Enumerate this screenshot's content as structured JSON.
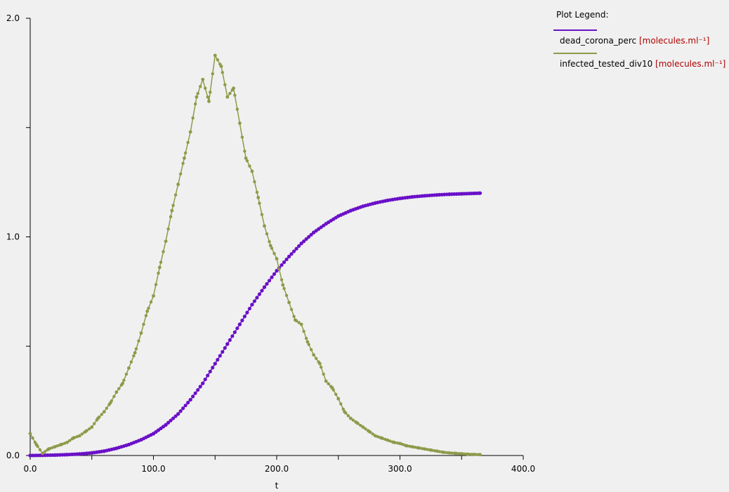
{
  "chart_data": {
    "type": "line",
    "title": "",
    "xlabel": "t",
    "ylabel": "",
    "xlim": [
      0,
      400
    ],
    "ylim": [
      0,
      2
    ],
    "x_ticks": [
      0,
      50,
      100,
      150,
      200,
      250,
      300,
      350,
      400
    ],
    "x_tick_labels": [
      "0.0",
      "",
      "100.0",
      "",
      "200.0",
      "",
      "300.0",
      "",
      "400.0"
    ],
    "y_ticks": [
      0,
      0.5,
      1.0,
      1.5,
      2.0
    ],
    "y_tick_labels": [
      "0.0",
      "",
      "1.0",
      "",
      "2.0"
    ],
    "grid": false,
    "legend_position": "right",
    "series": [
      {
        "name": "dead_corona_perc",
        "unit": "[molecules.ml⁻¹]",
        "color": "#6a10c8",
        "x": [
          0,
          10,
          20,
          30,
          40,
          50,
          60,
          70,
          80,
          90,
          100,
          110,
          120,
          130,
          140,
          150,
          160,
          170,
          180,
          190,
          200,
          210,
          220,
          230,
          240,
          250,
          260,
          270,
          280,
          290,
          300,
          310,
          320,
          330,
          340,
          350,
          360,
          365
        ],
        "y": [
          0.0,
          0.001,
          0.002,
          0.004,
          0.007,
          0.012,
          0.02,
          0.033,
          0.05,
          0.072,
          0.1,
          0.14,
          0.19,
          0.255,
          0.33,
          0.42,
          0.51,
          0.6,
          0.69,
          0.77,
          0.845,
          0.91,
          0.97,
          1.02,
          1.06,
          1.095,
          1.12,
          1.14,
          1.155,
          1.167,
          1.176,
          1.183,
          1.188,
          1.192,
          1.195,
          1.197,
          1.199,
          1.2
        ]
      },
      {
        "name": "infected_tested_div10",
        "unit": "[molecules.ml⁻¹]",
        "color": "#8f9a4a",
        "x": [
          0,
          5,
          10,
          15,
          20,
          25,
          30,
          35,
          40,
          45,
          50,
          55,
          60,
          65,
          70,
          75,
          80,
          85,
          90,
          95,
          100,
          105,
          110,
          115,
          120,
          125,
          130,
          135,
          140,
          145,
          150,
          155,
          160,
          165,
          170,
          175,
          180,
          185,
          190,
          195,
          200,
          205,
          210,
          215,
          220,
          225,
          230,
          235,
          240,
          245,
          250,
          255,
          260,
          265,
          270,
          275,
          280,
          285,
          290,
          295,
          300,
          305,
          310,
          315,
          320,
          325,
          330,
          335,
          340,
          345,
          350,
          355,
          360,
          365
        ],
        "y": [
          0.1,
          0.05,
          0.01,
          0.03,
          0.04,
          0.05,
          0.06,
          0.08,
          0.09,
          0.11,
          0.13,
          0.17,
          0.2,
          0.24,
          0.29,
          0.33,
          0.4,
          0.47,
          0.56,
          0.66,
          0.73,
          0.86,
          0.98,
          1.12,
          1.24,
          1.36,
          1.48,
          1.64,
          1.72,
          1.62,
          1.83,
          1.78,
          1.64,
          1.68,
          1.52,
          1.36,
          1.3,
          1.18,
          1.05,
          0.96,
          0.9,
          0.78,
          0.7,
          0.62,
          0.6,
          0.52,
          0.46,
          0.42,
          0.34,
          0.31,
          0.26,
          0.2,
          0.17,
          0.15,
          0.13,
          0.11,
          0.09,
          0.08,
          0.07,
          0.06,
          0.055,
          0.045,
          0.04,
          0.035,
          0.03,
          0.025,
          0.02,
          0.015,
          0.012,
          0.01,
          0.008,
          0.006,
          0.005,
          0.004
        ]
      }
    ]
  },
  "legend": {
    "title": "Plot Legend:"
  }
}
